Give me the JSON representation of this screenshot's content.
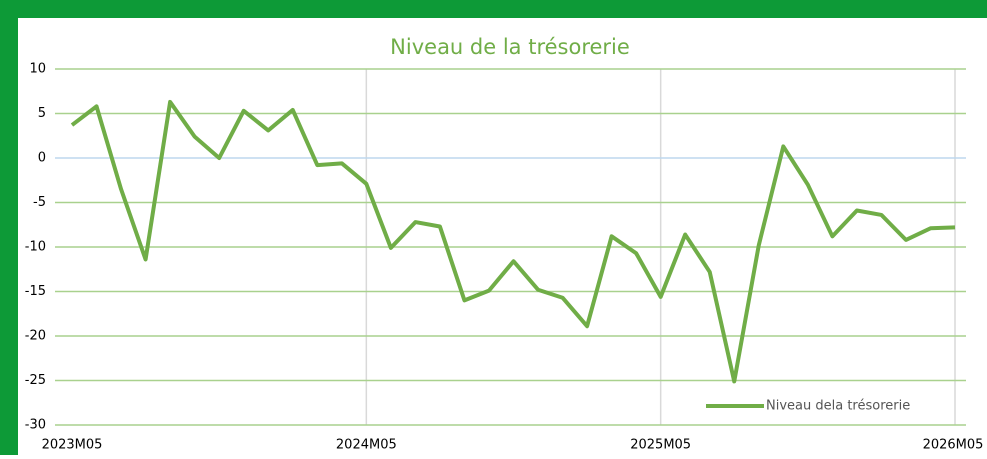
{
  "chart_data": {
    "type": "line",
    "title": "Niveau de la trésorerie",
    "categories": [
      "2023M05",
      null,
      null,
      null,
      null,
      null,
      null,
      null,
      null,
      null,
      null,
      null,
      "2024M05",
      null,
      null,
      null,
      null,
      null,
      null,
      null,
      null,
      null,
      null,
      null,
      "2025M05",
      null,
      null,
      null,
      null,
      null,
      null,
      null,
      null,
      null,
      null,
      null,
      "2026M05"
    ],
    "series": [
      {
        "name": "Niveau dela trésorerie",
        "color": "#70ad47",
        "values": [
          3.7,
          5.8,
          -3.5,
          -11.4,
          6.3,
          2.4,
          0,
          5.3,
          3.1,
          5.4,
          -0.8,
          -0.6,
          -2.9,
          -10.1,
          -7.2,
          -7.7,
          -16,
          -14.9,
          -11.6,
          -14.8,
          -15.7,
          -18.9,
          -8.8,
          -10.7,
          -15.6,
          -8.6,
          -12.8,
          -25.1,
          -9.8,
          1.3,
          -3,
          -8.8,
          -5.9,
          -6.4,
          -9.2,
          -7.9,
          -7.8
        ]
      }
    ],
    "ylim": [
      -30,
      10
    ],
    "yticks": [
      -30,
      -25,
      -20,
      -15,
      -10,
      -5,
      0,
      5,
      10
    ],
    "grid": true,
    "legend": "lower right"
  }
}
